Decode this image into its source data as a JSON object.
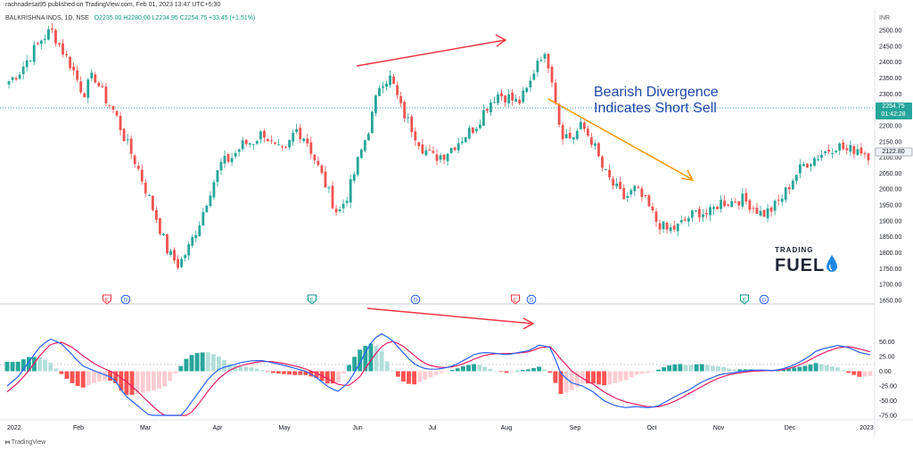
{
  "header": {
    "published": "rachnadesai95 published on TradingView.com, Feb 01, 2023 13:47 UTC+5:30",
    "symbol": "BALKRISHNA INDS, 1D, NSE",
    "ohlc": "O2235.00  H2280.00  L2234.95  C2254.75  +33.45 (+1.51%)"
  },
  "annotation": {
    "line1": "Bearish Divergence",
    "line2": "Indicates Short Sell"
  },
  "logo": {
    "top": "TRADING",
    "bottom": "FUEL"
  },
  "footer": {
    "brand": "TradingView"
  },
  "price_labels": {
    "last": "2254.75",
    "countdown": "01:42:28",
    "second": "2122.80"
  },
  "currency": "INR",
  "colors": {
    "up": "#26a69a",
    "down": "#ef5350",
    "macd": "#2962ff",
    "signal": "#e91e63",
    "arrow_red": "#f23645",
    "arrow_orange": "#ff9800",
    "text_blue": "#1f47a8"
  },
  "chart_data": {
    "type": "candlestick",
    "price_axis": {
      "min": 1650,
      "max": 2500,
      "ticks": [
        "2500.00",
        "2450.00",
        "2400.00",
        "2350.00",
        "2300.00",
        "2250.00",
        "2200.00",
        "2150.00",
        "2100.00",
        "2050.00",
        "2000.00",
        "1950.00",
        "1900.00",
        "1850.00",
        "1800.00",
        "1750.00",
        "1700.00",
        "1650.00"
      ]
    },
    "indicator_axis": {
      "min": -75,
      "max": 75,
      "ticks": [
        "50.00",
        "25.00",
        "0.00",
        "-25.00",
        "-50.00",
        "-75.00"
      ]
    },
    "x_labels": [
      "2022",
      "Feb",
      "Mar",
      "Apr",
      "May",
      "Jun",
      "Jul",
      "Aug",
      "Sep",
      "Oct",
      "Nov",
      "Dec",
      "2023"
    ],
    "close_series": [
      2340,
      2370,
      2420,
      2470,
      2500,
      2440,
      2380,
      2300,
      2360,
      2290,
      2240,
      2150,
      2080,
      1990,
      1900,
      1800,
      1760,
      1820,
      1900,
      2000,
      2080,
      2100,
      2140,
      2150,
      2180,
      2130,
      2110,
      2190,
      2160,
      2080,
      2000,
      1920,
      1990,
      2100,
      2200,
      2340,
      2350,
      2250,
      2190,
      2130,
      2100,
      2110,
      2140,
      2170,
      2200,
      2260,
      2300,
      2290,
      2270,
      2320,
      2430,
      2390,
      2180,
      2160,
      2200,
      2150,
      2060,
      2010,
      1970,
      2000,
      1960,
      1900,
      1870,
      1880,
      1910,
      1930,
      1920,
      1960,
      1960,
      1970,
      1950,
      1920,
      1940,
      1980,
      2040,
      2080,
      2100,
      2120,
      2140,
      2120,
      2130,
      2110
    ],
    "macd": [
      -25,
      -10,
      15,
      40,
      55,
      48,
      30,
      10,
      2,
      -5,
      -12,
      -40,
      -55,
      -70,
      -85,
      -95,
      -85,
      -60,
      -35,
      -10,
      5,
      10,
      15,
      18,
      18,
      14,
      10,
      5,
      0,
      -10,
      -25,
      -35,
      -20,
      10,
      45,
      65,
      55,
      35,
      15,
      5,
      3,
      5,
      10,
      20,
      30,
      32,
      30,
      28,
      32,
      35,
      45,
      40,
      -5,
      -20,
      -25,
      -35,
      -50,
      -58,
      -62,
      -60,
      -62,
      -60,
      -50,
      -40,
      -32,
      -20,
      -12,
      -5,
      -3,
      0,
      2,
      2,
      1,
      5,
      12,
      22,
      35,
      40,
      44,
      40,
      32,
      28
    ],
    "signal": [
      -35,
      -20,
      0,
      25,
      45,
      50,
      42,
      28,
      15,
      5,
      -2,
      -15,
      -30,
      -48,
      -65,
      -80,
      -86,
      -76,
      -55,
      -30,
      -10,
      3,
      10,
      14,
      17,
      16,
      13,
      9,
      4,
      -3,
      -12,
      -22,
      -25,
      -12,
      15,
      40,
      52,
      45,
      30,
      15,
      8,
      6,
      8,
      14,
      22,
      28,
      30,
      30,
      31,
      33,
      40,
      42,
      20,
      0,
      -12,
      -22,
      -35,
      -45,
      -52,
      -56,
      -60,
      -61,
      -56,
      -48,
      -38,
      -28,
      -18,
      -10,
      -5,
      -2,
      0,
      1,
      1,
      3,
      8,
      16,
      26,
      34,
      40,
      42,
      38,
      33
    ],
    "arrows": [
      {
        "panel": "price",
        "from": "late May",
        "to": "early Aug",
        "color": "red"
      },
      {
        "panel": "price",
        "from": "Aug",
        "to": "Oct",
        "color": "orange"
      },
      {
        "panel": "macd",
        "from": "Jun",
        "to": "Aug",
        "color": "red"
      }
    ],
    "event_markers": [
      {
        "label": "E",
        "color": "red"
      },
      {
        "label": "D",
        "color": "blue"
      },
      {
        "label": "E",
        "color": "green"
      },
      {
        "label": "D",
        "color": "blue"
      },
      {
        "label": "E",
        "color": "red"
      },
      {
        "label": "D",
        "color": "blue"
      },
      {
        "label": "E",
        "color": "green"
      },
      {
        "label": "D",
        "color": "blue"
      }
    ]
  }
}
